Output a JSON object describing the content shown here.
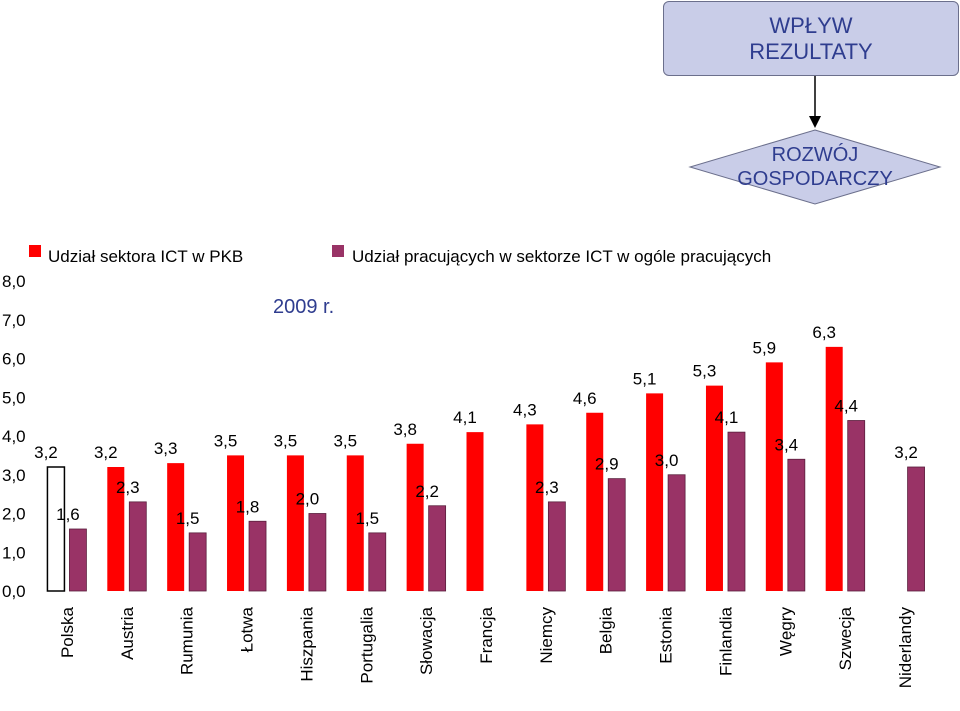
{
  "header": {
    "box_top": "WPŁYW\nREZULTATY",
    "box_diamond": "ROZWÓJ\nGOSPODARCZY",
    "year_note": "2009 r."
  },
  "colors": {
    "series1": "#ff0000",
    "series2": "#993366",
    "highlight_outline": "#000000",
    "box_fill": "#c9cde8",
    "box_text": "#2f3d8f"
  },
  "chart_data": {
    "type": "bar",
    "categories": [
      "Polska",
      "Austria",
      "Rumunia",
      "Łotwa",
      "Hiszpania",
      "Portugalia",
      "Słowacja",
      "Francja",
      "Niemcy",
      "Belgia",
      "Estonia",
      "Finlandia",
      "Węgry",
      "Szwecja",
      "Niderlandy"
    ],
    "series": [
      {
        "name": "Udział sektora ICT w PKB",
        "color": "#ff0000",
        "values": [
          3.2,
          3.2,
          3.3,
          3.5,
          3.5,
          3.5,
          3.8,
          4.1,
          4.3,
          4.6,
          5.1,
          5.3,
          5.9,
          6.3,
          null
        ],
        "labels": [
          "3,2",
          "3,2",
          "3,3",
          "3,5",
          "3,5",
          "3,5",
          "3,8",
          "4,1",
          "4,3",
          "4,6",
          "5,1",
          "5,3",
          "5,9",
          "6,3",
          ""
        ]
      },
      {
        "name": "Udział pracujących w sektorze ICT w ogóle pracujących",
        "color": "#993366",
        "values": [
          1.6,
          2.3,
          1.5,
          1.8,
          2.0,
          1.5,
          2.2,
          null,
          2.3,
          2.9,
          3.0,
          4.1,
          3.4,
          4.4,
          3.2
        ],
        "labels": [
          "1,6",
          "2,3",
          "1,5",
          "1,8",
          "2,0",
          "1,5",
          "2,2",
          "",
          "2,3",
          "2,9",
          "3,0",
          "4,1",
          "3,4",
          "4,4",
          "3,2"
        ]
      }
    ],
    "highlight_category": "Polska",
    "ylim": [
      0,
      8
    ],
    "yticks": [
      "0,0",
      "1,0",
      "2,0",
      "3,0",
      "4,0",
      "5,0",
      "6,0",
      "7,0",
      "8,0"
    ],
    "legend_position": "top",
    "grid": false
  }
}
